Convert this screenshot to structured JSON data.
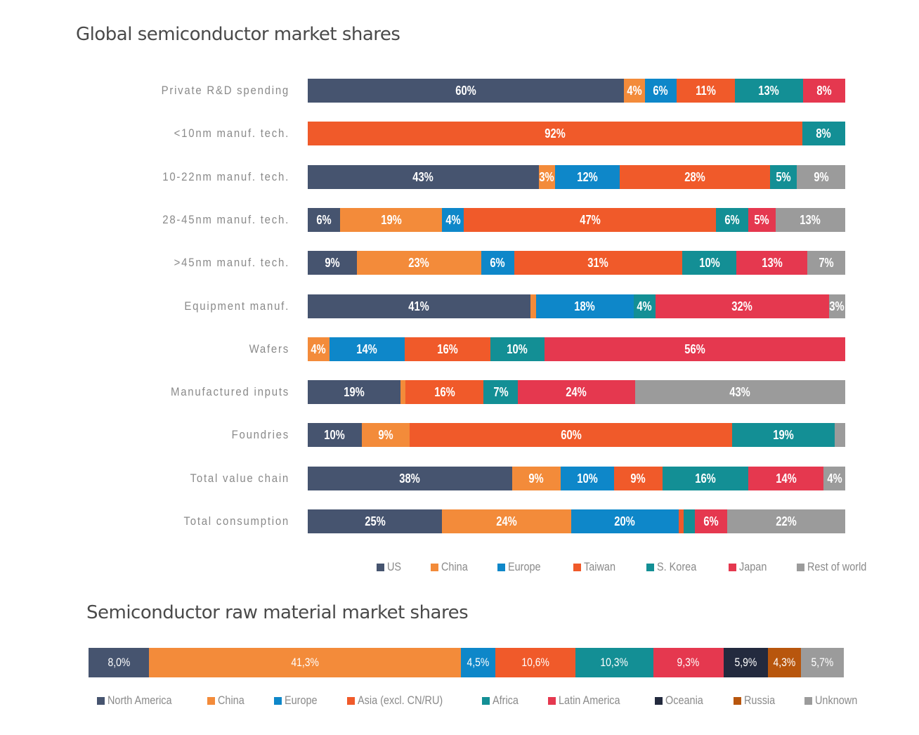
{
  "chart_data": [
    {
      "type": "bar",
      "orientation": "horizontal",
      "stacked": "percent",
      "title": "Global semiconductor market shares",
      "xlabel": "",
      "ylabel": "",
      "legend_position": "bottom-right",
      "grid": false,
      "series": [
        {
          "name": "US",
          "color": "#46546f"
        },
        {
          "name": "China",
          "color": "#f38b3a"
        },
        {
          "name": "Europe",
          "color": "#0e87c9"
        },
        {
          "name": "Taiwan",
          "color": "#f05a2a"
        },
        {
          "name": "S. Korea",
          "color": "#138f95"
        },
        {
          "name": "Japan",
          "color": "#e5384f"
        },
        {
          "name": "Rest of world",
          "color": "#9b9b9b"
        }
      ],
      "categories": [
        "Private R&D spending",
        "<10nm manuf. tech.",
        "10-22nm manuf. tech.",
        "28-45nm manuf. tech.",
        ">45nm manuf. tech.",
        "Equipment manuf.",
        "Wafers",
        "Manufactured inputs",
        "Foundries",
        "Total value chain",
        "Total consumption"
      ],
      "rows": [
        {
          "category": "Private R&D spending",
          "values": {
            "US": 60,
            "China": 4,
            "Europe": 6,
            "Taiwan": 11,
            "S. Korea": 13,
            "Japan": 8,
            "Rest of world": 0
          },
          "labels": {
            "US": "60%",
            "China": "4%",
            "Europe": "6%",
            "Taiwan": "11%",
            "S. Korea": "13%",
            "Japan": "8%"
          }
        },
        {
          "category": "<10nm manuf. tech.",
          "values": {
            "US": 0,
            "China": 0,
            "Europe": 0,
            "Taiwan": 92,
            "S. Korea": 8,
            "Japan": 0,
            "Rest of world": 0
          },
          "labels": {
            "Taiwan": "92%",
            "S. Korea": "8%"
          }
        },
        {
          "category": "10-22nm manuf. tech.",
          "values": {
            "US": 43,
            "China": 3,
            "Europe": 12,
            "Taiwan": 28,
            "S. Korea": 5,
            "Japan": 0,
            "Rest of world": 9
          },
          "labels": {
            "US": "43%",
            "China": "3%",
            "Europe": "12%",
            "Taiwan": "28%",
            "S. Korea": "5%",
            "Rest of world": "9%"
          }
        },
        {
          "category": "28-45nm manuf. tech.",
          "values": {
            "US": 6,
            "China": 19,
            "Europe": 4,
            "Taiwan": 47,
            "S. Korea": 6,
            "Japan": 5,
            "Rest of world": 13
          },
          "labels": {
            "US": "6%",
            "China": "19%",
            "Europe": "4%",
            "Taiwan": "47%",
            "S. Korea": "6%",
            "Japan": "5%",
            "Rest of world": "13%"
          }
        },
        {
          "category": ">45nm manuf. tech.",
          "values": {
            "US": 9,
            "China": 23,
            "Europe": 6,
            "Taiwan": 31,
            "S. Korea": 10,
            "Japan": 13,
            "Rest of world": 7
          },
          "labels": {
            "US": "9%",
            "China": "23%",
            "Europe": "6%",
            "Taiwan": "31%",
            "S. Korea": "10%",
            "Japan": "13%",
            "Rest of world": "7%"
          }
        },
        {
          "category": "Equipment manuf.",
          "values": {
            "US": 41,
            "China": 1,
            "Europe": 18,
            "Taiwan": 0,
            "S. Korea": 4,
            "Japan": 32,
            "Rest of world": 3
          },
          "labels": {
            "US": "41%",
            "Europe": "18%",
            "S. Korea": "4%",
            "Japan": "32%",
            "Rest of world": "3%"
          }
        },
        {
          "category": "Wafers",
          "values": {
            "US": 0,
            "China": 4,
            "Europe": 14,
            "Taiwan": 16,
            "S. Korea": 10,
            "Japan": 56,
            "Rest of world": 0
          },
          "labels": {
            "China": "4%",
            "Europe": "14%",
            "Taiwan": "16%",
            "S. Korea": "10%",
            "Japan": "56%"
          }
        },
        {
          "category": "Manufactured inputs",
          "values": {
            "US": 19,
            "China": 1,
            "Europe": 0,
            "Taiwan": 16,
            "S. Korea": 7,
            "Japan": 24,
            "Rest of world": 43
          },
          "labels": {
            "US": "19%",
            "Taiwan": "16%",
            "S. Korea": "7%",
            "Japan": "24%",
            "Rest of world": "43%"
          }
        },
        {
          "category": "Foundries",
          "values": {
            "US": 10,
            "China": 9,
            "Europe": 0,
            "Taiwan": 60,
            "S. Korea": 19,
            "Japan": 0,
            "Rest of world": 2
          },
          "labels": {
            "US": "10%",
            "China": "9%",
            "Taiwan": "60%",
            "S. Korea": "19%"
          }
        },
        {
          "category": "Total value chain",
          "values": {
            "US": 38,
            "China": 9,
            "Europe": 10,
            "Taiwan": 9,
            "S. Korea": 16,
            "Japan": 14,
            "Rest of world": 4
          },
          "labels": {
            "US": "38%",
            "China": "9%",
            "Europe": "10%",
            "Taiwan": "9%",
            "S. Korea": "16%",
            "Japan": "14%",
            "Rest of world": "4%"
          }
        },
        {
          "category": "Total consumption",
          "values": {
            "US": 25,
            "China": 24,
            "Europe": 20,
            "Taiwan": 1,
            "S. Korea": 2,
            "Japan": 6,
            "Rest of world": 22
          },
          "labels": {
            "US": "25%",
            "China": "24%",
            "Europe": "20%",
            "Japan": "6%",
            "Rest of world": "22%"
          }
        }
      ]
    },
    {
      "type": "bar",
      "orientation": "horizontal",
      "stacked": "percent",
      "title": "Semiconductor raw material market shares",
      "legend_position": "bottom",
      "grid": false,
      "series": [
        {
          "name": "North America",
          "color": "#46546f",
          "value": 8.0,
          "label": "8,0%"
        },
        {
          "name": "China",
          "color": "#f38b3a",
          "value": 41.3,
          "label": "41,3%"
        },
        {
          "name": "Europe",
          "color": "#0e87c9",
          "value": 4.5,
          "label": "4,5%"
        },
        {
          "name": "Asia (excl. CN/RU)",
          "color": "#f05a2a",
          "value": 10.6,
          "label": "10,6%"
        },
        {
          "name": "Africa",
          "color": "#138f95",
          "value": 10.3,
          "label": "10,3%"
        },
        {
          "name": "Latin America",
          "color": "#e5384f",
          "value": 9.3,
          "label": "9,3%"
        },
        {
          "name": "Oceania",
          "color": "#232a3e",
          "value": 5.9,
          "label": "5,9%"
        },
        {
          "name": "Russia",
          "color": "#b8560d",
          "value": 4.3,
          "label": "4,3%"
        },
        {
          "name": "Unknown",
          "color": "#9b9b9b",
          "value": 5.7,
          "label": "5,7%"
        }
      ]
    }
  ]
}
